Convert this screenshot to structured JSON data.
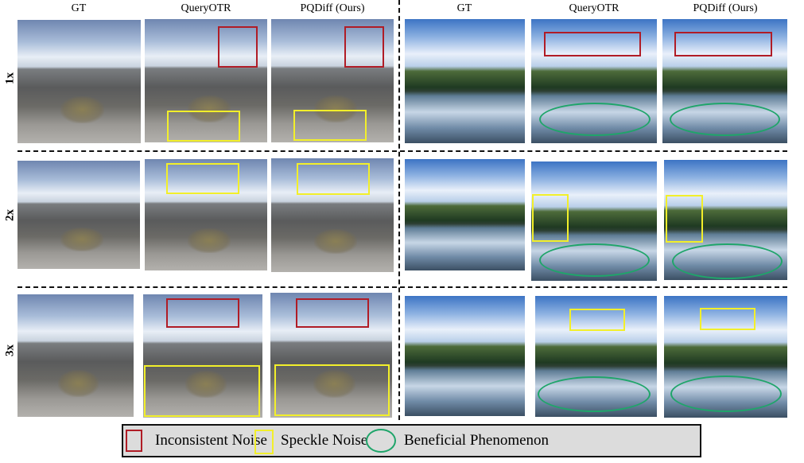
{
  "column_headers": [
    "GT",
    "QueryOTR",
    "PQDiff (Ours)",
    "GT",
    "QueryOTR",
    "PQDiff (Ours)"
  ],
  "row_labels": [
    "1x",
    "2x",
    "3x"
  ],
  "legend": {
    "items": [
      {
        "label": "Inconsistent Noise",
        "shape": "rectangle",
        "color": "#b01c26"
      },
      {
        "label": "Speckle Noise",
        "shape": "rectangle",
        "color": "#f2ef2a"
      },
      {
        "label": "Beneficial Phenomenon",
        "shape": "ellipse",
        "color": "#1fa56a"
      }
    ]
  }
}
